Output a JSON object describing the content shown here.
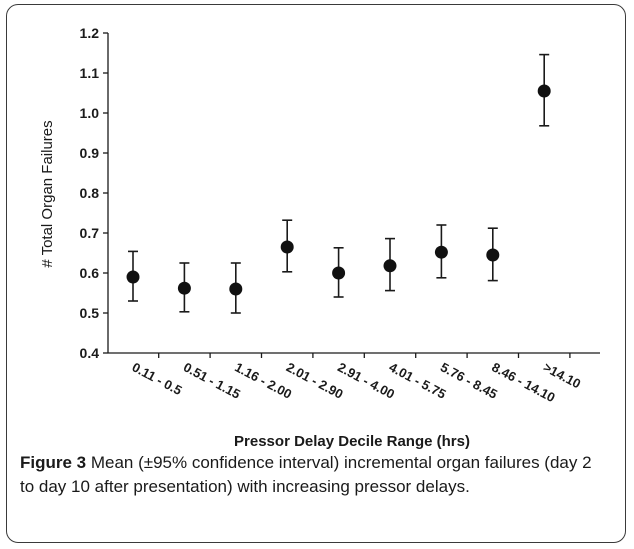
{
  "chart_data": {
    "type": "scatter",
    "ylabel": "# Total  Organ Failures",
    "xlabel": "Pressor Delay Decile Range (hrs)",
    "ylim": [
      0.4,
      1.2
    ],
    "yticks": [
      "0.4",
      "0.5",
      "0.6",
      "0.7",
      "0.8",
      "0.9",
      "1.0",
      "1.1",
      "1.2"
    ],
    "categories": [
      "0.11 - 0.5",
      "0.51 - 1.15",
      "1.16 - 2.00",
      "2.01 - 2.90",
      "2.91 - 4.00",
      "4.01 - 5.75",
      "5.76 - 8.45",
      "8.46 - 14.10",
      ">14.10"
    ],
    "values": [
      0.59,
      0.562,
      0.56,
      0.665,
      0.6,
      0.618,
      0.652,
      0.645,
      1.055
    ],
    "ci_lower": [
      0.53,
      0.503,
      0.5,
      0.603,
      0.54,
      0.556,
      0.588,
      0.581,
      0.968
    ],
    "ci_upper": [
      0.654,
      0.625,
      0.625,
      0.732,
      0.663,
      0.686,
      0.72,
      0.712,
      1.146
    ],
    "grid": false,
    "error_bars": "95% CI"
  },
  "caption": {
    "label": "Figure 3",
    "text": " Mean (±95% confidence interval) incremental organ failures (day 2 to day 10 after presentation) with increasing pressor delays."
  }
}
